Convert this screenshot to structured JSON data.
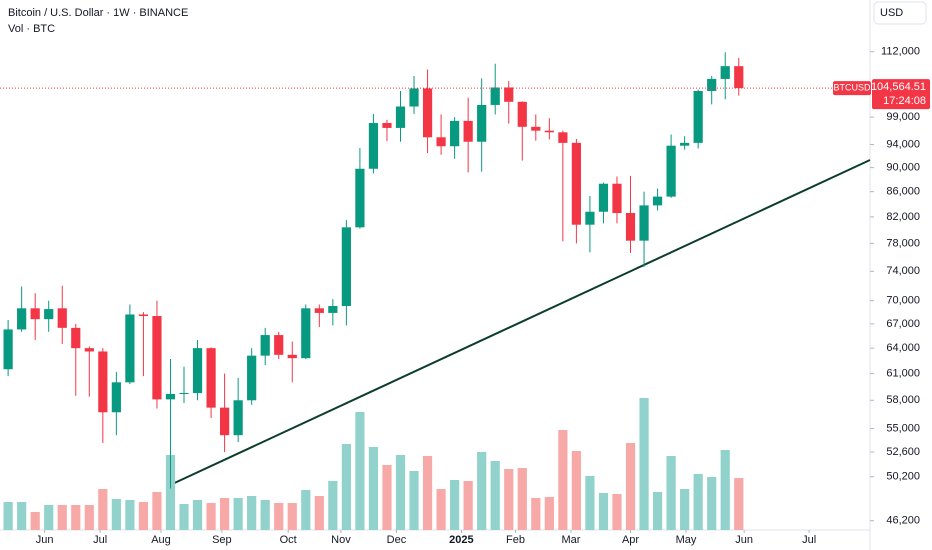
{
  "chart_data": {
    "type": "candlestick",
    "title": "Bitcoin / U.S. Dollar · 1W · BINANCE",
    "subtitle": "Vol · BTC",
    "currency": "USD",
    "symbol": "BTCUSD",
    "countdown": "17:24:08",
    "log": true,
    "grid": false,
    "up_color": "#089981",
    "down_color": "#f23645",
    "volume_up_color": "#92d2cc",
    "volume_down_color": "#f7a9a7",
    "open": [
      61500,
      66300,
      69000,
      67600,
      69000,
      66500,
      64000,
      63600,
      56700,
      60000,
      68200,
      68000,
      58100,
      58700,
      58800,
      64000,
      57200,
      54300,
      58000,
      63100,
      65600,
      63200,
      62800,
      69000,
      68400,
      69300,
      80400,
      89800,
      97900,
      97000,
      101000,
      104500,
      95300,
      93700,
      98300,
      94500,
      101300,
      104700,
      101900,
      97200,
      96500,
      96200,
      94300,
      80800,
      82800,
      87300,
      82600,
      78400,
      83800,
      85200,
      93800,
      94300,
      104000,
      106400,
      109000
    ],
    "high": [
      67500,
      71900,
      71000,
      70000,
      72000,
      67000,
      64200,
      64000,
      61200,
      69500,
      68500,
      70000,
      62700,
      61800,
      65000,
      64100,
      61000,
      60500,
      64000,
      66500,
      66000,
      64800,
      69500,
      69500,
      70200,
      81500,
      93400,
      99600,
      98500,
      104000,
      107000,
      108300,
      99500,
      99000,
      102700,
      106500,
      109500,
      106000,
      102000,
      99500,
      98800,
      96500,
      95000,
      85300,
      87500,
      88500,
      88600,
      86000,
      86500,
      95800,
      95500,
      104300,
      107000,
      111900,
      110700
    ],
    "low": [
      60700,
      66000,
      65000,
      66000,
      64500,
      58500,
      58400,
      53500,
      54300,
      59800,
      60700,
      57100,
      49100,
      57700,
      58000,
      56100,
      52600,
      53600,
      57500,
      62000,
      62700,
      60000,
      62700,
      66600,
      66800,
      66800,
      80200,
      89000,
      94600,
      94500,
      99600,
      92500,
      92200,
      91500,
      89200,
      89300,
      99500,
      97800,
      91200,
      94700,
      94900,
      78300,
      78000,
      76700,
      81000,
      81000,
      76600,
      74600,
      83000,
      85000,
      93100,
      93300,
      101400,
      102400,
      103100
    ],
    "close": [
      66300,
      69000,
      67600,
      68900,
      66500,
      64000,
      63600,
      56700,
      60000,
      68200,
      68000,
      58100,
      58700,
      58800,
      64000,
      57200,
      54300,
      58000,
      63100,
      65600,
      63200,
      62800,
      69000,
      68400,
      69300,
      80400,
      89800,
      97900,
      97000,
      101000,
      104500,
      95300,
      93700,
      98300,
      94500,
      101300,
      104700,
      101900,
      97200,
      96500,
      96200,
      94300,
      80800,
      82800,
      87300,
      82600,
      78400,
      83800,
      85200,
      93800,
      94300,
      104000,
      106400,
      109000,
      104564.51
    ],
    "close_label": "104,564.51",
    "volume": [
      28,
      28,
      18,
      25,
      25,
      25,
      25,
      41,
      31,
      30,
      28,
      38,
      75,
      26,
      30,
      27,
      32,
      32,
      34,
      30,
      27,
      27,
      40,
      34,
      49,
      86,
      118,
      83,
      65,
      75,
      59,
      74,
      41,
      50,
      49,
      78,
      69,
      61,
      62,
      32,
      33,
      100,
      79,
      54,
      37,
      36,
      87,
      132,
      38,
      74,
      41,
      56,
      53,
      80,
      52
    ],
    "vlim": [
      0,
      180
    ],
    "ylim": [
      45400,
      123500
    ],
    "yticks": [
      {
        "value": 112000,
        "label": "112,000"
      },
      {
        "value": 99000,
        "label": "99,000"
      },
      {
        "value": 94000,
        "label": "94,000"
      },
      {
        "value": 90000,
        "label": "90,000"
      },
      {
        "value": 86000,
        "label": "86,000"
      },
      {
        "value": 82000,
        "label": "82,000"
      },
      {
        "value": 78000,
        "label": "78,000"
      },
      {
        "value": 74000,
        "label": "74,000"
      },
      {
        "value": 70000,
        "label": "70,000"
      },
      {
        "value": 67000,
        "label": "67,000"
      },
      {
        "value": 64000,
        "label": "64,000"
      },
      {
        "value": 61000,
        "label": "61,000"
      },
      {
        "value": 58000,
        "label": "58,000"
      },
      {
        "value": 55000,
        "label": "55,000"
      },
      {
        "value": 52600,
        "label": "52,600"
      },
      {
        "value": 50200,
        "label": "50,200"
      },
      {
        "value": 46200,
        "label": "46,200"
      }
    ],
    "xlim": [
      -0.6,
      63.7
    ],
    "xticks": [
      {
        "value": 2.7,
        "label": "Jun"
      },
      {
        "value": 6.8,
        "label": "Jul"
      },
      {
        "value": 11.3,
        "label": "Aug"
      },
      {
        "value": 15.8,
        "label": "Sep"
      },
      {
        "value": 20.7,
        "label": "Oct"
      },
      {
        "value": 24.6,
        "label": "Nov"
      },
      {
        "value": 28.7,
        "label": "Dec"
      },
      {
        "value": 33.5,
        "label": "2025"
      },
      {
        "value": 37.5,
        "label": "Feb"
      },
      {
        "value": 41.6,
        "label": "Mar"
      },
      {
        "value": 46.0,
        "label": "Apr"
      },
      {
        "value": 50.1,
        "label": "May"
      },
      {
        "value": 54.4,
        "label": "Jun"
      },
      {
        "value": 59.2,
        "label": "Jul"
      }
    ]
  }
}
